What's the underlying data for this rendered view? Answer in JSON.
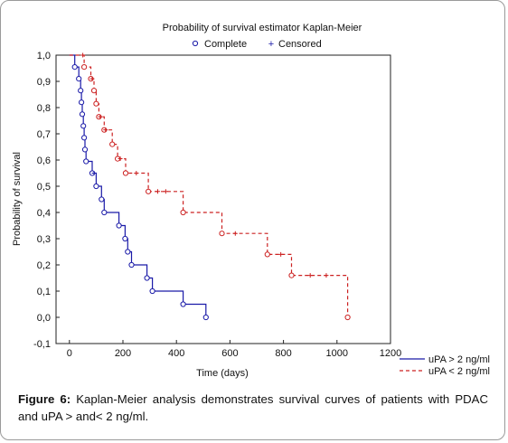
{
  "chart_data": {
    "type": "line",
    "subtype": "kaplan-meier step",
    "title": "Probability of survival estimator Kaplan-Meier",
    "marker_legend": [
      {
        "symbol": "circle",
        "label": "Complete"
      },
      {
        "symbol": "plus",
        "label": "Censored"
      }
    ],
    "xlabel": "Time (days)",
    "ylabel": "Probability of survival",
    "xlim": [
      -50,
      1200
    ],
    "ylim": [
      -0.1,
      1.0
    ],
    "x_ticks": [
      0,
      200,
      400,
      600,
      800,
      1000,
      1200
    ],
    "x_tick_labels": [
      "0",
      "200",
      "400",
      "600",
      "800",
      "1000",
      "1200"
    ],
    "y_ticks": [
      -0.1,
      0.0,
      0.1,
      0.2,
      0.3,
      0.4,
      0.5,
      0.6,
      0.7,
      0.8,
      0.9,
      1.0
    ],
    "y_tick_labels": [
      "-0,1",
      "0,0",
      "0,1",
      "0,2",
      "0,3",
      "0,4",
      "0,5",
      "0,6",
      "0,7",
      "0,8",
      "0,9",
      "1,0"
    ],
    "grid": false,
    "legend_position": "bottom-right, outside plot",
    "series": [
      {
        "name": "uPA > 2 ng/ml",
        "color": "#1a1aa8",
        "style": "solid",
        "steps": [
          [
            0,
            1.0
          ],
          [
            20,
            0.955
          ],
          [
            35,
            0.91
          ],
          [
            42,
            0.865
          ],
          [
            45,
            0.82
          ],
          [
            48,
            0.775
          ],
          [
            52,
            0.73
          ],
          [
            55,
            0.685
          ],
          [
            58,
            0.64
          ],
          [
            62,
            0.595
          ],
          [
            85,
            0.55
          ],
          [
            100,
            0.5
          ],
          [
            120,
            0.45
          ],
          [
            130,
            0.4
          ],
          [
            185,
            0.35
          ],
          [
            208,
            0.3
          ],
          [
            218,
            0.25
          ],
          [
            232,
            0.2
          ],
          [
            290,
            0.15
          ],
          [
            310,
            0.1
          ],
          [
            425,
            0.05
          ],
          [
            510,
            0.0
          ]
        ],
        "events": [
          [
            20,
            0.955
          ],
          [
            35,
            0.91
          ],
          [
            42,
            0.865
          ],
          [
            45,
            0.82
          ],
          [
            48,
            0.775
          ],
          [
            52,
            0.73
          ],
          [
            55,
            0.685
          ],
          [
            58,
            0.64
          ],
          [
            62,
            0.595
          ],
          [
            85,
            0.55
          ],
          [
            100,
            0.5
          ],
          [
            120,
            0.45
          ],
          [
            130,
            0.4
          ],
          [
            185,
            0.35
          ],
          [
            208,
            0.3
          ],
          [
            218,
            0.25
          ],
          [
            232,
            0.2
          ],
          [
            290,
            0.15
          ],
          [
            310,
            0.1
          ],
          [
            425,
            0.05
          ],
          [
            510,
            0.0
          ]
        ],
        "censored": [
          [
            92,
            0.55
          ]
        ]
      },
      {
        "name": "uPA < 2 ng/ml",
        "color": "#cc2222",
        "style": "dashed",
        "steps": [
          [
            0,
            1.0
          ],
          [
            55,
            0.955
          ],
          [
            80,
            0.91
          ],
          [
            92,
            0.865
          ],
          [
            100,
            0.815
          ],
          [
            110,
            0.765
          ],
          [
            130,
            0.715
          ],
          [
            160,
            0.66
          ],
          [
            180,
            0.605
          ],
          [
            210,
            0.55
          ],
          [
            295,
            0.48
          ],
          [
            425,
            0.4
          ],
          [
            570,
            0.32
          ],
          [
            740,
            0.24
          ],
          [
            830,
            0.16
          ],
          [
            1040,
            0.0
          ]
        ],
        "events": [
          [
            55,
            0.955
          ],
          [
            80,
            0.91
          ],
          [
            92,
            0.865
          ],
          [
            100,
            0.815
          ],
          [
            110,
            0.765
          ],
          [
            130,
            0.715
          ],
          [
            160,
            0.66
          ],
          [
            180,
            0.605
          ],
          [
            210,
            0.55
          ],
          [
            295,
            0.48
          ],
          [
            425,
            0.4
          ],
          [
            570,
            0.32
          ],
          [
            740,
            0.24
          ],
          [
            830,
            0.16
          ],
          [
            1040,
            0.0
          ]
        ],
        "censored": [
          [
            50,
            1.0
          ],
          [
            85,
            0.91
          ],
          [
            115,
            0.765
          ],
          [
            135,
            0.715
          ],
          [
            190,
            0.605
          ],
          [
            250,
            0.55
          ],
          [
            330,
            0.48
          ],
          [
            360,
            0.48
          ],
          [
            620,
            0.32
          ],
          [
            790,
            0.24
          ],
          [
            900,
            0.16
          ],
          [
            960,
            0.16
          ]
        ]
      }
    ]
  },
  "caption": {
    "label": "Figure 6:",
    "text": " Kaplan-Meier analysis demonstrates survival curves of patients with PDAC and uPA > and< 2 ng/ml."
  }
}
